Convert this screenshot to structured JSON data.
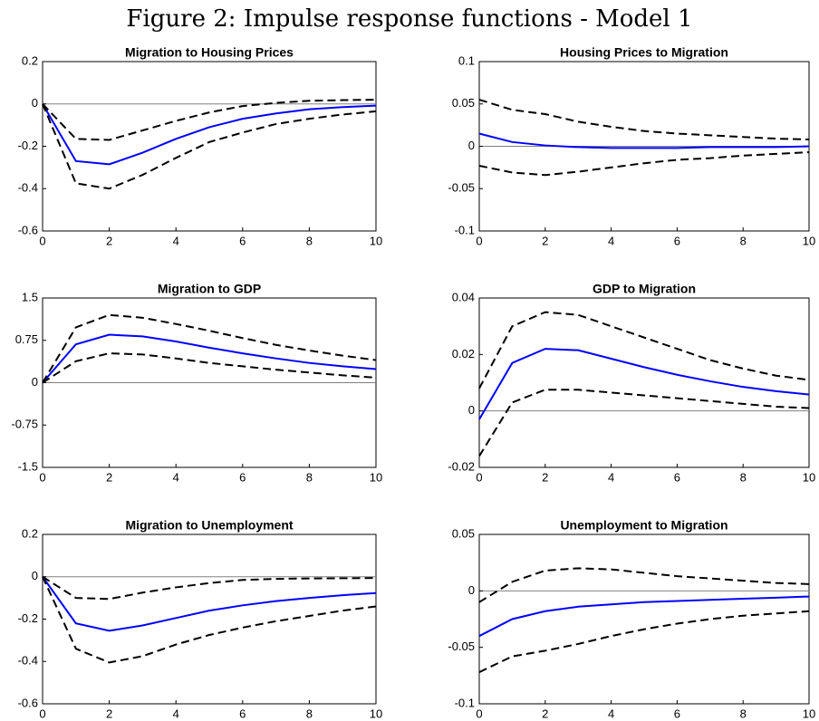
{
  "title": "Figure 2: Impulse response functions - Model 1",
  "chart_data": [
    {
      "type": "line",
      "title": "Migration to Housing Prices",
      "x": [
        0,
        1,
        2,
        3,
        4,
        5,
        6,
        7,
        8,
        9,
        10
      ],
      "xlim": [
        0,
        10
      ],
      "xticks": [
        0,
        2,
        4,
        6,
        8,
        10
      ],
      "ylim": [
        -0.6,
        0.2
      ],
      "yticks": [
        -0.6,
        -0.4,
        -0.2,
        0,
        0.2
      ],
      "series": [
        {
          "color": "#0000ff",
          "dash": false,
          "values": [
            0,
            -0.27,
            -0.285,
            -0.23,
            -0.165,
            -0.11,
            -0.07,
            -0.045,
            -0.025,
            -0.015,
            -0.008
          ]
        },
        {
          "color": "#000000",
          "dash": true,
          "values": [
            0,
            -0.165,
            -0.17,
            -0.125,
            -0.08,
            -0.04,
            -0.01,
            0.005,
            0.015,
            0.018,
            0.02
          ]
        },
        {
          "color": "#000000",
          "dash": true,
          "values": [
            0,
            -0.375,
            -0.4,
            -0.335,
            -0.255,
            -0.18,
            -0.135,
            -0.095,
            -0.07,
            -0.05,
            -0.035
          ]
        }
      ]
    },
    {
      "type": "line",
      "title": "Housing Prices to Migration",
      "x": [
        0,
        1,
        2,
        3,
        4,
        5,
        6,
        7,
        8,
        9,
        10
      ],
      "xlim": [
        0,
        10
      ],
      "xticks": [
        0,
        2,
        4,
        6,
        8,
        10
      ],
      "ylim": [
        -0.1,
        0.1
      ],
      "yticks": [
        -0.1,
        -0.05,
        0,
        0.05,
        0.1
      ],
      "series": [
        {
          "color": "#0000ff",
          "dash": false,
          "values": [
            0.015,
            0.005,
            0.001,
            -0.001,
            -0.002,
            -0.002,
            -0.002,
            -0.001,
            -0.001,
            -0.001,
            0
          ]
        },
        {
          "color": "#000000",
          "dash": true,
          "values": [
            0.055,
            0.043,
            0.038,
            0.029,
            0.023,
            0.018,
            0.015,
            0.013,
            0.011,
            0.009,
            0.008
          ]
        },
        {
          "color": "#000000",
          "dash": true,
          "values": [
            -0.023,
            -0.031,
            -0.034,
            -0.03,
            -0.025,
            -0.02,
            -0.016,
            -0.014,
            -0.011,
            -0.009,
            -0.007
          ]
        }
      ]
    },
    {
      "type": "line",
      "title": "Migration to GDP",
      "x": [
        0,
        1,
        2,
        3,
        4,
        5,
        6,
        7,
        8,
        9,
        10
      ],
      "xlim": [
        0,
        10
      ],
      "xticks": [
        0,
        2,
        4,
        6,
        8,
        10
      ],
      "ylim": [
        -1.5,
        1.5
      ],
      "yticks": [
        -1.5,
        -0.75,
        0,
        0.75,
        1.5
      ],
      "series": [
        {
          "color": "#0000ff",
          "dash": false,
          "values": [
            0,
            0.68,
            0.85,
            0.82,
            0.73,
            0.62,
            0.52,
            0.43,
            0.35,
            0.29,
            0.24
          ]
        },
        {
          "color": "#000000",
          "dash": true,
          "values": [
            0,
            0.98,
            1.2,
            1.15,
            1.04,
            0.92,
            0.79,
            0.67,
            0.57,
            0.48,
            0.4
          ]
        },
        {
          "color": "#000000",
          "dash": true,
          "values": [
            0,
            0.38,
            0.52,
            0.5,
            0.43,
            0.35,
            0.29,
            0.23,
            0.18,
            0.13,
            0.09
          ]
        }
      ]
    },
    {
      "type": "line",
      "title": "GDP to Migration",
      "x": [
        0,
        1,
        2,
        3,
        4,
        5,
        6,
        7,
        8,
        9,
        10
      ],
      "xlim": [
        0,
        10
      ],
      "xticks": [
        0,
        2,
        4,
        6,
        8,
        10
      ],
      "ylim": [
        -0.02,
        0.04
      ],
      "yticks": [
        -0.02,
        0,
        0.02,
        0.04
      ],
      "series": [
        {
          "color": "#0000ff",
          "dash": false,
          "values": [
            -0.003,
            0.017,
            0.022,
            0.0215,
            0.0185,
            0.0155,
            0.0128,
            0.0105,
            0.0085,
            0.007,
            0.0058
          ]
        },
        {
          "color": "#000000",
          "dash": true,
          "values": [
            0.008,
            0.03,
            0.035,
            0.034,
            0.03,
            0.026,
            0.022,
            0.018,
            0.015,
            0.0125,
            0.011
          ]
        },
        {
          "color": "#000000",
          "dash": true,
          "values": [
            -0.016,
            0.003,
            0.0075,
            0.0075,
            0.0065,
            0.0055,
            0.0045,
            0.0035,
            0.0025,
            0.0015,
            0.001
          ]
        }
      ]
    },
    {
      "type": "line",
      "title": "Migration to Unemployment",
      "x": [
        0,
        1,
        2,
        3,
        4,
        5,
        6,
        7,
        8,
        9,
        10
      ],
      "xlim": [
        0,
        10
      ],
      "xticks": [
        0,
        2,
        4,
        6,
        8,
        10
      ],
      "ylim": [
        -0.6,
        0.2
      ],
      "yticks": [
        -0.6,
        -0.4,
        -0.2,
        0,
        0.2
      ],
      "series": [
        {
          "color": "#0000ff",
          "dash": false,
          "values": [
            0,
            -0.22,
            -0.255,
            -0.23,
            -0.195,
            -0.16,
            -0.135,
            -0.115,
            -0.1,
            -0.087,
            -0.077
          ]
        },
        {
          "color": "#000000",
          "dash": true,
          "values": [
            0,
            -0.1,
            -0.105,
            -0.075,
            -0.05,
            -0.03,
            -0.015,
            -0.01,
            -0.008,
            -0.007,
            -0.006
          ]
        },
        {
          "color": "#000000",
          "dash": true,
          "values": [
            0,
            -0.34,
            -0.405,
            -0.375,
            -0.32,
            -0.275,
            -0.24,
            -0.21,
            -0.185,
            -0.16,
            -0.14
          ]
        }
      ]
    },
    {
      "type": "line",
      "title": "Unemployment to Migration",
      "x": [
        0,
        1,
        2,
        3,
        4,
        5,
        6,
        7,
        8,
        9,
        10
      ],
      "xlim": [
        0,
        10
      ],
      "xticks": [
        0,
        2,
        4,
        6,
        8,
        10
      ],
      "ylim": [
        -0.1,
        0.05
      ],
      "yticks": [
        -0.1,
        -0.05,
        0,
        0.05
      ],
      "series": [
        {
          "color": "#0000ff",
          "dash": false,
          "values": [
            -0.04,
            -0.025,
            -0.018,
            -0.014,
            -0.012,
            -0.01,
            -0.009,
            -0.008,
            -0.007,
            -0.006,
            -0.005
          ]
        },
        {
          "color": "#000000",
          "dash": true,
          "values": [
            -0.01,
            0.008,
            0.018,
            0.02,
            0.019,
            0.016,
            0.013,
            0.011,
            0.009,
            0.007,
            0.006
          ]
        },
        {
          "color": "#000000",
          "dash": true,
          "values": [
            -0.072,
            -0.058,
            -0.053,
            -0.047,
            -0.04,
            -0.034,
            -0.029,
            -0.025,
            -0.022,
            -0.02,
            -0.018
          ]
        }
      ]
    }
  ]
}
